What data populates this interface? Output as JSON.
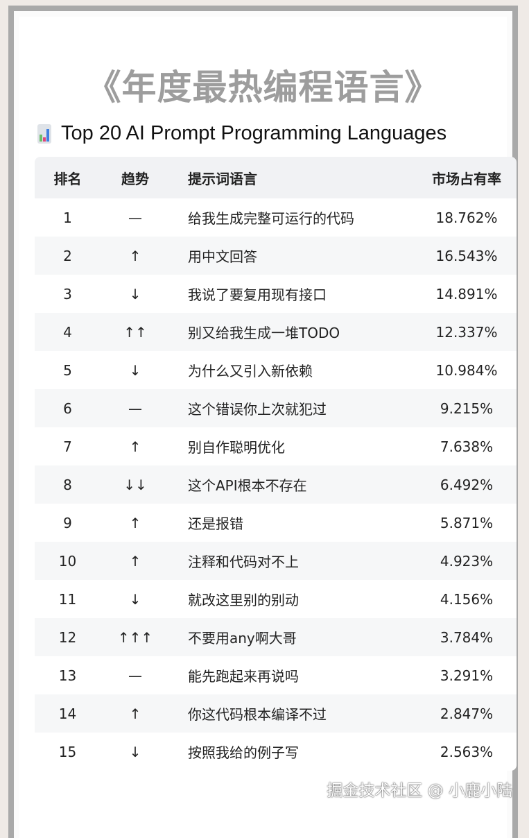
{
  "banner_title": "《年度最热编程语言》",
  "subtitle": "Top 20 AI Prompt Programming Languages",
  "icon": "bar-chart-icon",
  "table": {
    "headers": [
      "排名",
      "趋势",
      "提示词语言",
      "市场占有率"
    ],
    "rows": [
      {
        "rank": "1",
        "trend": "—",
        "prompt": "给我生成完整可运行的代码",
        "share": "18.762%"
      },
      {
        "rank": "2",
        "trend": "↑",
        "prompt": "用中文回答",
        "share": "16.543%"
      },
      {
        "rank": "3",
        "trend": "↓",
        "prompt": "我说了要复用现有接口",
        "share": "14.891%"
      },
      {
        "rank": "4",
        "trend": "↑↑",
        "prompt": "别又给我生成一堆TODO",
        "share": "12.337%"
      },
      {
        "rank": "5",
        "trend": "↓",
        "prompt": "为什么又引入新依赖",
        "share": "10.984%"
      },
      {
        "rank": "6",
        "trend": "—",
        "prompt": "这个错误你上次就犯过",
        "share": "9.215%"
      },
      {
        "rank": "7",
        "trend": "↑",
        "prompt": "别自作聪明优化",
        "share": "7.638%"
      },
      {
        "rank": "8",
        "trend": "↓↓",
        "prompt": "这个API根本不存在",
        "share": "6.492%"
      },
      {
        "rank": "9",
        "trend": "↑",
        "prompt": "还是报错",
        "share": "5.871%"
      },
      {
        "rank": "10",
        "trend": "↑",
        "prompt": "注释和代码对不上",
        "share": "4.923%"
      },
      {
        "rank": "11",
        "trend": "↓",
        "prompt": "就改这里别的别动",
        "share": "4.156%"
      },
      {
        "rank": "12",
        "trend": "↑↑↑",
        "prompt": "不要用any啊大哥",
        "share": "3.784%"
      },
      {
        "rank": "13",
        "trend": "—",
        "prompt": "能先跑起来再说吗",
        "share": "3.291%"
      },
      {
        "rank": "14",
        "trend": "↑",
        "prompt": "你这代码根本编译不过",
        "share": "2.847%"
      },
      {
        "rank": "15",
        "trend": "↓",
        "prompt": "按照我给的例子写",
        "share": "2.563%"
      }
    ]
  },
  "watermark": "掘金技术社区 @ 小鹿小陆"
}
